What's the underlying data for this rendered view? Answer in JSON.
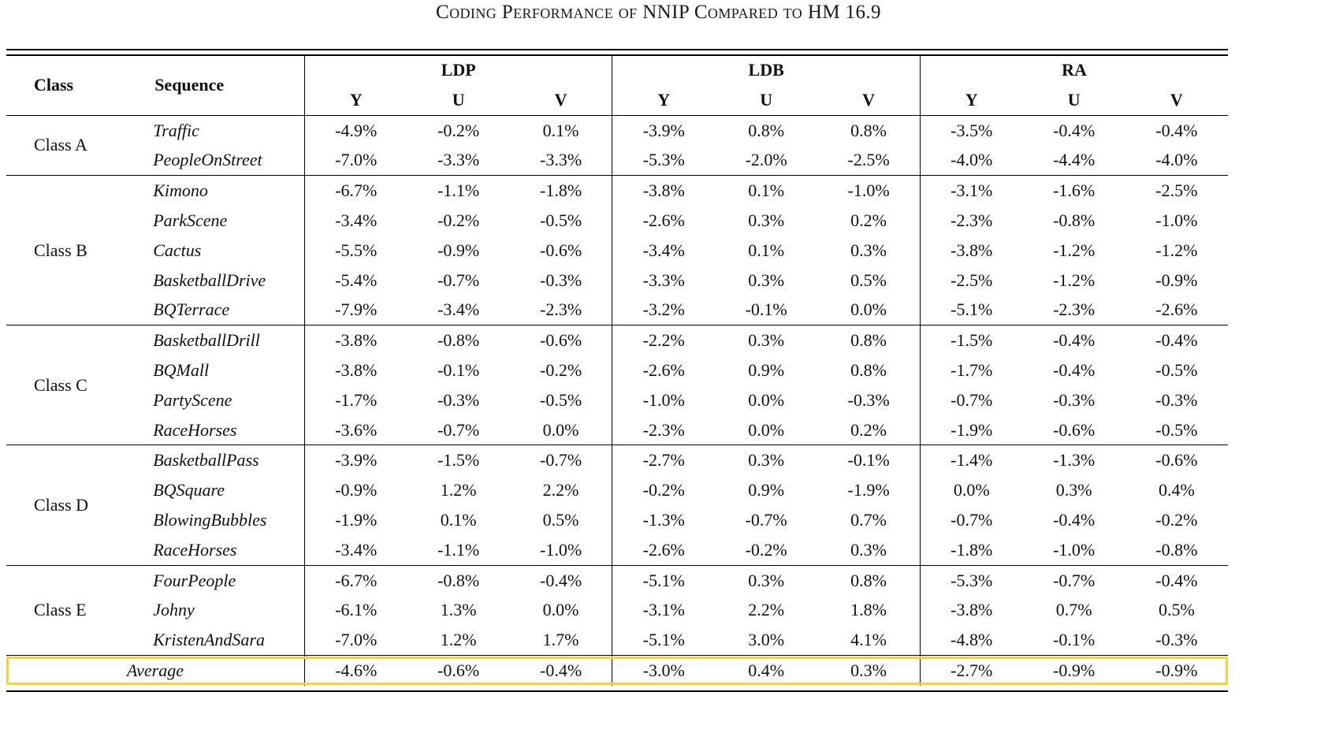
{
  "title": "Coding Performance of NNIP Compared to HM 16.9",
  "header": {
    "class_label": "Class",
    "sequence_label": "Sequence",
    "groups": [
      "LDP",
      "LDB",
      "RA"
    ],
    "components": [
      "Y",
      "U",
      "V"
    ]
  },
  "classes": [
    {
      "name": "Class A",
      "rows": [
        {
          "sequence": "Traffic",
          "values": [
            "-4.9%",
            "-0.2%",
            "0.1%",
            "-3.9%",
            "0.8%",
            "0.8%",
            "-3.5%",
            "-0.4%",
            "-0.4%"
          ]
        },
        {
          "sequence": "PeopleOnStreet",
          "values": [
            "-7.0%",
            "-3.3%",
            "-3.3%",
            "-5.3%",
            "-2.0%",
            "-2.5%",
            "-4.0%",
            "-4.4%",
            "-4.0%"
          ]
        }
      ]
    },
    {
      "name": "Class B",
      "rows": [
        {
          "sequence": "Kimono",
          "values": [
            "-6.7%",
            "-1.1%",
            "-1.8%",
            "-3.8%",
            "0.1%",
            "-1.0%",
            "-3.1%",
            "-1.6%",
            "-2.5%"
          ]
        },
        {
          "sequence": "ParkScene",
          "values": [
            "-3.4%",
            "-0.2%",
            "-0.5%",
            "-2.6%",
            "0.3%",
            "0.2%",
            "-2.3%",
            "-0.8%",
            "-1.0%"
          ]
        },
        {
          "sequence": "Cactus",
          "values": [
            "-5.5%",
            "-0.9%",
            "-0.6%",
            "-3.4%",
            "0.1%",
            "0.3%",
            "-3.8%",
            "-1.2%",
            "-1.2%"
          ]
        },
        {
          "sequence": "BasketballDrive",
          "values": [
            "-5.4%",
            "-0.7%",
            "-0.3%",
            "-3.3%",
            "0.3%",
            "0.5%",
            "-2.5%",
            "-1.2%",
            "-0.9%"
          ]
        },
        {
          "sequence": "BQTerrace",
          "values": [
            "-7.9%",
            "-3.4%",
            "-2.3%",
            "-3.2%",
            "-0.1%",
            "0.0%",
            "-5.1%",
            "-2.3%",
            "-2.6%"
          ]
        }
      ]
    },
    {
      "name": "Class C",
      "rows": [
        {
          "sequence": "BasketballDrill",
          "values": [
            "-3.8%",
            "-0.8%",
            "-0.6%",
            "-2.2%",
            "0.3%",
            "0.8%",
            "-1.5%",
            "-0.4%",
            "-0.4%"
          ]
        },
        {
          "sequence": "BQMall",
          "values": [
            "-3.8%",
            "-0.1%",
            "-0.2%",
            "-2.6%",
            "0.9%",
            "0.8%",
            "-1.7%",
            "-0.4%",
            "-0.5%"
          ]
        },
        {
          "sequence": "PartyScene",
          "values": [
            "-1.7%",
            "-0.3%",
            "-0.5%",
            "-1.0%",
            "0.0%",
            "-0.3%",
            "-0.7%",
            "-0.3%",
            "-0.3%"
          ]
        },
        {
          "sequence": "RaceHorses",
          "values": [
            "-3.6%",
            "-0.7%",
            "0.0%",
            "-2.3%",
            "0.0%",
            "0.2%",
            "-1.9%",
            "-0.6%",
            "-0.5%"
          ]
        }
      ]
    },
    {
      "name": "Class D",
      "rows": [
        {
          "sequence": "BasketballPass",
          "values": [
            "-3.9%",
            "-1.5%",
            "-0.7%",
            "-2.7%",
            "0.3%",
            "-0.1%",
            "-1.4%",
            "-1.3%",
            "-0.6%"
          ]
        },
        {
          "sequence": "BQSquare",
          "values": [
            "-0.9%",
            "1.2%",
            "2.2%",
            "-0.2%",
            "0.9%",
            "-1.9%",
            "0.0%",
            "0.3%",
            "0.4%"
          ]
        },
        {
          "sequence": "BlowingBubbles",
          "values": [
            "-1.9%",
            "0.1%",
            "0.5%",
            "-1.3%",
            "-0.7%",
            "0.7%",
            "-0.7%",
            "-0.4%",
            "-0.2%"
          ]
        },
        {
          "sequence": "RaceHorses",
          "values": [
            "-3.4%",
            "-1.1%",
            "-1.0%",
            "-2.6%",
            "-0.2%",
            "0.3%",
            "-1.8%",
            "-1.0%",
            "-0.8%"
          ]
        }
      ]
    },
    {
      "name": "Class E",
      "rows": [
        {
          "sequence": "FourPeople",
          "values": [
            "-6.7%",
            "-0.8%",
            "-0.4%",
            "-5.1%",
            "0.3%",
            "0.8%",
            "-5.3%",
            "-0.7%",
            "-0.4%"
          ]
        },
        {
          "sequence": "Johny",
          "values": [
            "-6.1%",
            "1.3%",
            "0.0%",
            "-3.1%",
            "2.2%",
            "1.8%",
            "-3.8%",
            "0.7%",
            "0.5%"
          ]
        },
        {
          "sequence": "KristenAndSara",
          "values": [
            "-7.0%",
            "1.2%",
            "1.7%",
            "-5.1%",
            "3.0%",
            "4.1%",
            "-4.8%",
            "-0.1%",
            "-0.3%"
          ]
        }
      ]
    }
  ],
  "average": {
    "label": "Average",
    "values": [
      "-4.6%",
      "-0.6%",
      "-0.4%",
      "-3.0%",
      "0.4%",
      "0.3%",
      "-2.7%",
      "-0.9%",
      "-0.9%"
    ]
  },
  "colors": {
    "highlight": "#f3d23a",
    "rule": "#000000"
  }
}
